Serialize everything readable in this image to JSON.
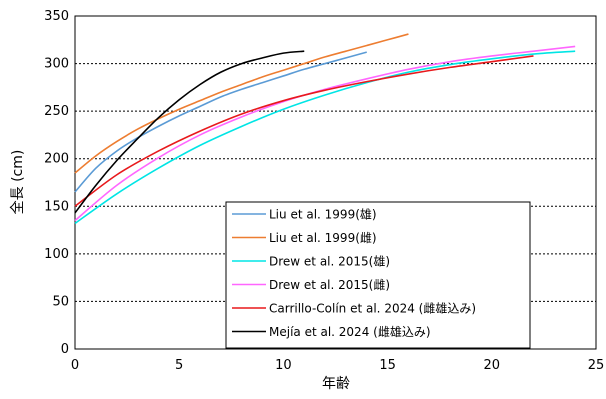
{
  "chart_data": {
    "type": "line",
    "xlabel": "年齢",
    "ylabel": "全長 (cm)",
    "xlim": [
      0,
      25
    ],
    "ylim": [
      0,
      350
    ],
    "xticks": [
      0,
      5,
      10,
      15,
      20,
      25
    ],
    "yticks": [
      0,
      50,
      100,
      150,
      200,
      250,
      300,
      350
    ],
    "grid": "horizontal dotted",
    "legend_position": "lower-right",
    "series": [
      {
        "name": "Liu et al. 1999(雄)",
        "color": "#5b9bd5",
        "x": [
          0,
          1,
          2,
          3,
          4,
          5,
          6,
          7,
          8,
          9,
          10,
          11,
          12,
          13,
          14
        ],
        "y": [
          165,
          190,
          208,
          222,
          234,
          245,
          255,
          265,
          273,
          280,
          287,
          294,
          300,
          306,
          312
        ]
      },
      {
        "name": "Liu et al. 1999(雌)",
        "color": "#ed7d31",
        "x": [
          0,
          1,
          2,
          3,
          4,
          5,
          6,
          7,
          8,
          9,
          10,
          11,
          12,
          13,
          14,
          15,
          16
        ],
        "y": [
          185,
          203,
          218,
          231,
          242,
          252,
          261,
          270,
          278,
          286,
          293,
          300,
          307,
          313,
          319,
          325,
          331
        ]
      },
      {
        "name": "Drew et al. 2015(雄)",
        "color": "#00e5e5",
        "x": [
          0,
          2,
          4,
          6,
          8,
          10,
          12,
          14,
          16,
          18,
          20,
          22,
          24
        ],
        "y": [
          132,
          163,
          190,
          214,
          234,
          252,
          267,
          280,
          291,
          299,
          305,
          310,
          313
        ]
      },
      {
        "name": "Drew et al. 2015(雌)",
        "color": "#ff66ff",
        "x": [
          0,
          2,
          4,
          6,
          8,
          10,
          12,
          14,
          16,
          18,
          20,
          22,
          24
        ],
        "y": [
          135,
          172,
          201,
          225,
          244,
          260,
          273,
          284,
          294,
          302,
          308,
          313,
          318
        ]
      },
      {
        "name": "Carrillo-Colín et al. 2024 (雌雄込み)",
        "color": "#e8191c",
        "x": [
          0,
          2,
          4,
          6,
          8,
          10,
          12,
          14,
          16,
          18,
          20,
          22
        ],
        "y": [
          150,
          183,
          208,
          229,
          247,
          261,
          272,
          281,
          289,
          296,
          302,
          308
        ]
      },
      {
        "name": "Mejía et al. 2024 (雌雄込み)",
        "color": "#000000",
        "x": [
          0,
          1,
          2,
          3,
          4,
          5,
          6,
          7,
          8,
          9,
          10,
          11
        ],
        "y": [
          143,
          172,
          198,
          221,
          243,
          262,
          278,
          291,
          300,
          306,
          311,
          313
        ]
      }
    ]
  }
}
